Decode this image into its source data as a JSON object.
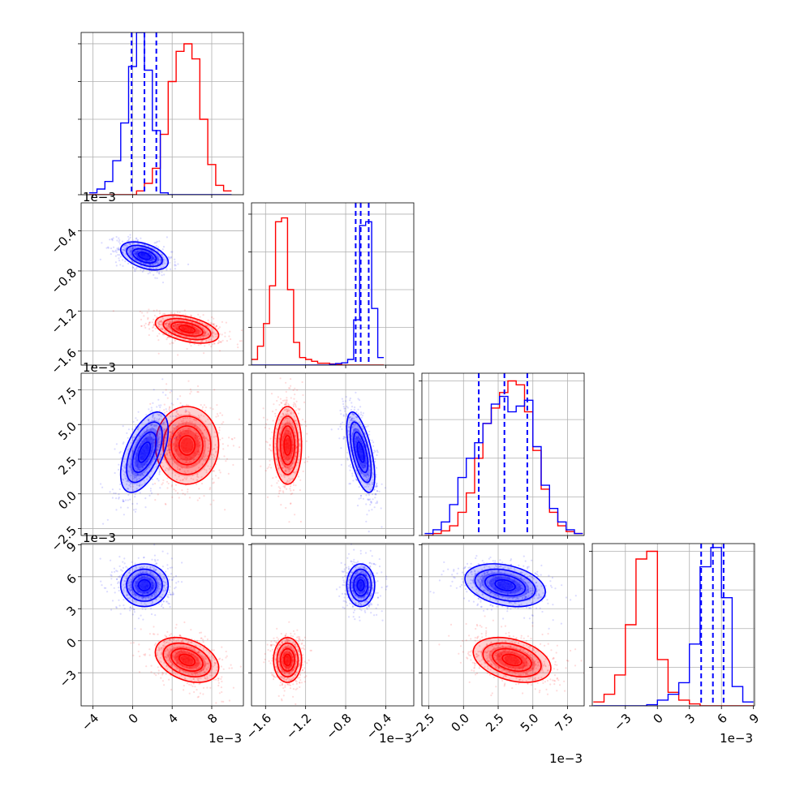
{
  "chart_data": {
    "type": "corner",
    "parameters": 4,
    "series": [
      {
        "color": "#0000ff",
        "means": [
          1.2,
          -0.65,
          3.0,
          5.2
        ],
        "sds": [
          1.2,
          0.07,
          1.45,
          1.0
        ],
        "correlations": [
          [
            0,
            1,
            -0.45
          ],
          [
            0,
            2,
            0.55
          ],
          [
            1,
            2,
            -0.6
          ],
          [
            2,
            3,
            -0.3
          ]
        ],
        "quantiles": [
          [
            -0.1,
            1.2,
            2.4
          ],
          [
            -0.7,
            -0.65,
            -0.57
          ],
          [
            1.1,
            2.95,
            4.6
          ],
          [
            4.1,
            5.2,
            6.2
          ]
        ]
      },
      {
        "color": "#ff0000",
        "means": [
          5.5,
          -1.38,
          3.5,
          -1.8
        ],
        "sds": [
          1.6,
          0.07,
          1.4,
          1.05
        ],
        "correlations": [
          [
            0,
            1,
            -0.45
          ],
          [
            0,
            3,
            -0.35
          ],
          [
            2,
            3,
            -0.35
          ]
        ]
      }
    ],
    "panels": [
      {
        "row": 0,
        "col": 0,
        "type": "hist",
        "ylim": [
          0,
          4.3
        ],
        "yticks": [
          0,
          1,
          2,
          3,
          4
        ],
        "bins": [
          -4.4,
          -3.6,
          -2.8,
          -2.0,
          -1.2,
          -0.4,
          0.4,
          1.2,
          2.0,
          2.8,
          3.6,
          4.4,
          5.2,
          6.0,
          6.8,
          7.6,
          8.4,
          9.2,
          10.0
        ],
        "blue": [
          0.05,
          0.15,
          0.35,
          0.9,
          1.9,
          3.4,
          4.3,
          3.3,
          1.7,
          0.05,
          0,
          0,
          0,
          0,
          0,
          0,
          0,
          0
        ],
        "red": [
          0,
          0,
          0,
          0,
          0,
          0,
          0.1,
          0.3,
          0.7,
          1.6,
          3.0,
          3.8,
          4.0,
          3.6,
          2.0,
          0.8,
          0.25,
          0.1
        ],
        "quantile_lines": [
          -0.1,
          1.2,
          2.4
        ]
      },
      {
        "row": 1,
        "col": 1,
        "type": "hist",
        "ylim": [
          0,
          4.3
        ],
        "yticks": [
          0,
          1,
          2,
          3,
          4
        ],
        "bins": [
          -1.74,
          -1.68,
          -1.62,
          -1.56,
          -1.5,
          -1.44,
          -1.38,
          -1.32,
          -1.26,
          -1.2,
          -1.14,
          -1.08,
          -1.02,
          -0.96,
          -0.9,
          -0.84,
          -0.78,
          -0.72,
          -0.66,
          -0.6,
          -0.54,
          -0.48,
          -0.42
        ],
        "blue": [
          0,
          0,
          0,
          0,
          0,
          0,
          0,
          0,
          0,
          0,
          0,
          0,
          0,
          0.02,
          0.04,
          0.06,
          0.15,
          1.2,
          3.7,
          3.8,
          1.5,
          0.2
        ],
        "red": [
          0.15,
          0.5,
          1.1,
          2.1,
          3.8,
          3.9,
          2.0,
          0.6,
          0.2,
          0.15,
          0.1,
          0.05,
          0.05,
          0.03,
          0.02,
          0,
          0,
          0,
          0,
          0,
          0,
          0
        ],
        "quantile_lines": [
          -0.7,
          -0.65,
          -0.57
        ]
      },
      {
        "row": 2,
        "col": 2,
        "type": "hist",
        "ylim": [
          0,
          4.2
        ],
        "yticks": [
          0,
          1,
          2,
          3,
          4
        ],
        "bins": [
          -2.8,
          -2.2,
          -1.6,
          -1.0,
          -0.4,
          0.2,
          0.8,
          1.4,
          2.0,
          2.6,
          3.2,
          3.8,
          4.4,
          5.0,
          5.6,
          6.2,
          6.8,
          7.4,
          8.0,
          8.6
        ],
        "blue": [
          0.05,
          0.15,
          0.35,
          0.8,
          1.5,
          2.0,
          2.4,
          2.9,
          3.4,
          3.6,
          3.2,
          3.35,
          3.5,
          2.3,
          1.3,
          0.7,
          0.35,
          0.15,
          0.05
        ],
        "red": [
          0,
          0.05,
          0.12,
          0.25,
          0.6,
          1.1,
          2.0,
          2.9,
          3.3,
          3.7,
          4.0,
          3.9,
          3.2,
          2.2,
          1.2,
          0.6,
          0.25,
          0.1,
          0.05
        ],
        "quantile_lines": [
          1.1,
          2.95,
          4.6
        ]
      },
      {
        "row": 3,
        "col": 3,
        "type": "hist",
        "ylim": [
          0,
          4.2
        ],
        "yticks": [
          0,
          1,
          2,
          3,
          4
        ],
        "bins": [
          -6.0,
          -5.0,
          -4.0,
          -3.0,
          -2.0,
          -1.0,
          0.0,
          1.0,
          2.0,
          3.0,
          4.0,
          5.0,
          6.0,
          7.0,
          8.0,
          9.0
        ],
        "blue": [
          0,
          0,
          0,
          0,
          0,
          0.03,
          0.15,
          0.3,
          0.6,
          1.6,
          3.6,
          4.1,
          2.8,
          0.5,
          0.1
        ],
        "red": [
          0.1,
          0.3,
          0.8,
          2.1,
          3.8,
          4.0,
          1.2,
          0.35,
          0.15,
          0.05,
          0,
          0,
          0,
          0,
          0
        ],
        "quantile_lines": [
          4.1,
          5.2,
          6.2
        ]
      },
      {
        "row": 1,
        "col": 0,
        "type": "scatter2d"
      },
      {
        "row": 2,
        "col": 0,
        "type": "scatter2d"
      },
      {
        "row": 2,
        "col": 1,
        "type": "scatter2d"
      },
      {
        "row": 3,
        "col": 0,
        "type": "scatter2d"
      },
      {
        "row": 3,
        "col": 1,
        "type": "scatter2d"
      },
      {
        "row": 3,
        "col": 2,
        "type": "scatter2d"
      }
    ],
    "axes": [
      {
        "lim": [
          -5.2,
          11.2
        ],
        "ticks": [
          -4,
          0,
          4,
          8
        ],
        "tick_labels": [
          "−4",
          "0",
          "4",
          "8"
        ],
        "multiplier": "1e−3"
      },
      {
        "lim": [
          -1.74,
          -0.12
        ],
        "ticks": [
          -1.6,
          -1.2,
          -0.8,
          -0.4
        ],
        "tick_labels": [
          "−1.6",
          "−1.2",
          "−0.8",
          "−0.4"
        ],
        "multiplier": "1e−3"
      },
      {
        "lim": [
          -3.0,
          8.7
        ],
        "ticks": [
          -2.5,
          0,
          2.5,
          5.0,
          7.5
        ],
        "tick_labels": [
          "−2.5",
          "0.0",
          "2.5",
          "5.0",
          "7.5"
        ],
        "multiplier": "1e−3"
      },
      {
        "lim": [
          -6.1,
          9.1
        ],
        "ticks": [
          -3,
          0,
          3,
          6,
          9
        ],
        "tick_labels": [
          "−3",
          "0",
          "3",
          "6",
          "9"
        ],
        "multiplier": "1e−3"
      }
    ],
    "grid": true
  }
}
